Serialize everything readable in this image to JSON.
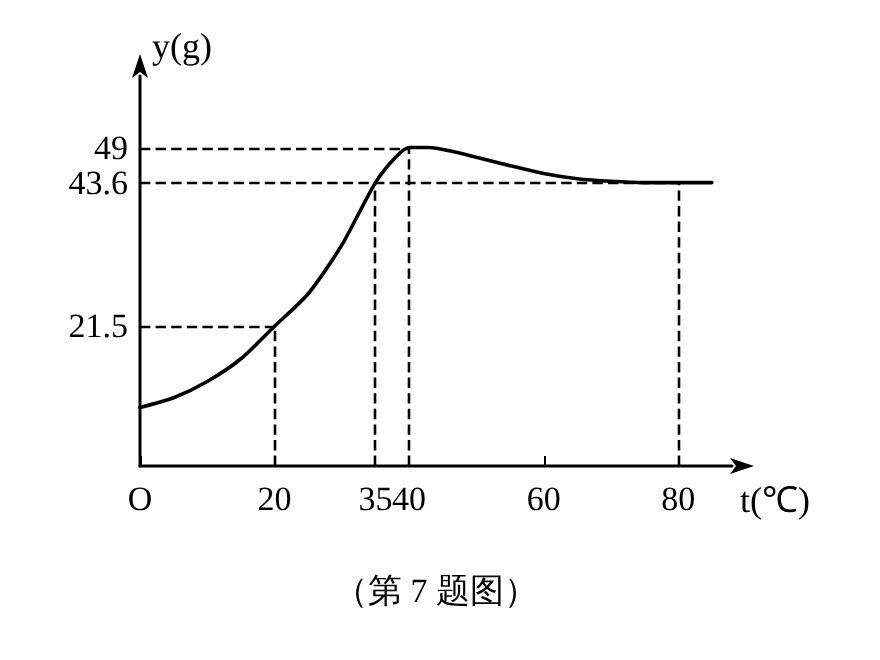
{
  "chart_data": {
    "type": "line",
    "xlabel": "t(℃)",
    "ylabel": "y(g)",
    "annotations": [
      "（第 7 题图）"
    ],
    "x": [
      0,
      5,
      10,
      15,
      20,
      25,
      30,
      35,
      38,
      40,
      43,
      46,
      50,
      55,
      60,
      65,
      70,
      75,
      80,
      85
    ],
    "series": [
      {
        "color": "#000000",
        "values": [
          9,
          10.5,
          13,
          16.5,
          21.5,
          26.5,
          34,
          43.6,
          47.5,
          49,
          49,
          48.5,
          47.5,
          46.2,
          45,
          44.2,
          43.8,
          43.6,
          43.6,
          43.6
        ]
      }
    ],
    "xlim": [
      0,
      88
    ],
    "xticks": [
      {
        "value": 0,
        "label": "O"
      },
      20,
      35,
      40,
      60,
      80
    ],
    "ylim": [
      0,
      60
    ],
    "yticks": [
      21.5,
      43.6,
      49
    ],
    "ref_lines": [
      {
        "axis": "y",
        "value": 21.5,
        "color": "#000000",
        "line_style": "dashed"
      },
      {
        "axis": "y",
        "value": 43.6,
        "color": "#000000",
        "line_style": "dashed"
      },
      {
        "axis": "y",
        "value": 49,
        "color": "#000000",
        "line_style": "dashed"
      },
      {
        "axis": "x",
        "value": 20,
        "color": "#000000",
        "line_style": "dashed"
      },
      {
        "axis": "x",
        "value": 35,
        "color": "#000000",
        "line_style": "dashed"
      },
      {
        "axis": "x",
        "value": 40,
        "color": "#000000",
        "line_style": "dashed"
      },
      {
        "axis": "x",
        "value": 80,
        "color": "#000000",
        "line_style": "dashed"
      }
    ],
    "grid": false,
    "marker": "none",
    "line_style": "solid"
  }
}
